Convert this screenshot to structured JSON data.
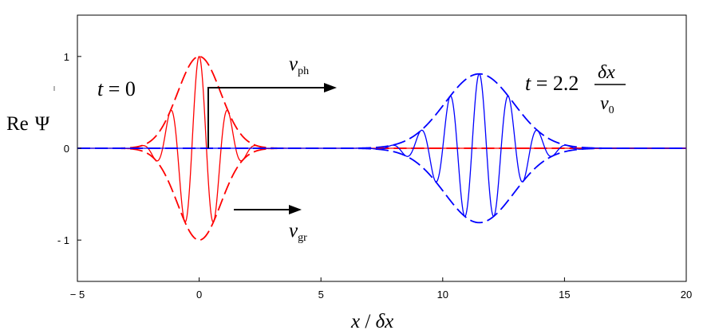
{
  "chart_data": {
    "type": "line",
    "xlabel_main": "x",
    "xlabel_sep": " / ",
    "xlabel_delta": "δx",
    "ylabel_prefix": "Re",
    "ylabel_symbol": "Ψ",
    "xlim": [
      -5,
      20
    ],
    "ylim": [
      -1.45,
      1.45
    ],
    "x_ticks": [
      -5,
      0,
      5,
      10,
      15,
      20
    ],
    "x_tick_labels": [
      "− 5",
      "0",
      "5",
      "10",
      "15",
      "20"
    ],
    "y_ticks": [
      1,
      0,
      -1
    ],
    "y_tick_labels": [
      "1",
      "0",
      "- 1"
    ],
    "grid": false,
    "series": [
      {
        "color": "#ff0000",
        "style": "solid",
        "kind": "wave",
        "center": 0,
        "amplitude": 1.0,
        "envelope_width": 1.25,
        "wavelength": 1.2,
        "x_range": [
          -5,
          20
        ]
      },
      {
        "color": "#ff0000",
        "style": "dashed",
        "kind": "envelope",
        "center": 0,
        "amplitude": 1.0,
        "envelope_width": 1.25,
        "x_range": [
          -5,
          20
        ]
      },
      {
        "color": "#0000ff",
        "style": "solid",
        "kind": "wave",
        "center": 11.5,
        "amplitude": 0.81,
        "envelope_width": 2.0,
        "wavelength": 1.2,
        "x_range": [
          -5,
          20
        ]
      },
      {
        "color": "#0000ff",
        "style": "dashed",
        "kind": "envelope",
        "center": 11.5,
        "amplitude": 0.81,
        "envelope_width": 2.0,
        "x_range": [
          -5,
          20
        ]
      }
    ],
    "annotations": {
      "t0_t": "t",
      "t0_rest": " = 0",
      "t2_t": "t",
      "t2_value": " = 2.2",
      "t2_numerator": "δx",
      "t2_denominator_v": "v",
      "t2_denominator_sub": "0",
      "vph_v": "v",
      "vph_sub": "ph",
      "vgr_v": "v",
      "vgr_sub": "gr"
    }
  }
}
